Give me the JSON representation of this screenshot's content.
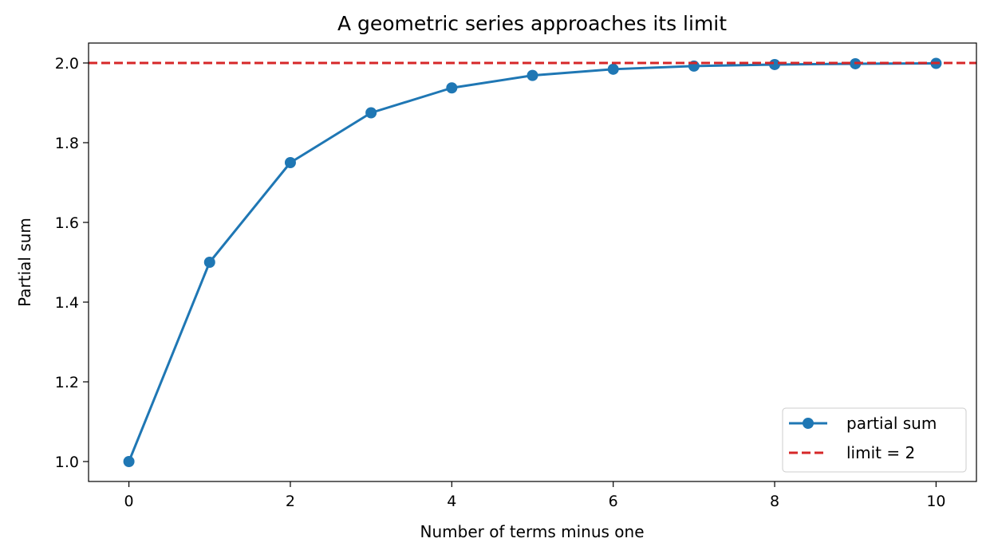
{
  "chart_data": {
    "type": "line",
    "title": "A geometric series approaches its limit",
    "xlabel": "Number of terms minus one",
    "ylabel": "Partial sum",
    "xlim": [
      -0.5,
      10.5
    ],
    "ylim": [
      0.95,
      2.05
    ],
    "x_ticks": [
      0,
      2,
      4,
      6,
      8,
      10
    ],
    "x_tick_labels": [
      "0",
      "2",
      "4",
      "6",
      "8",
      "10"
    ],
    "y_ticks": [
      1.0,
      1.2,
      1.4,
      1.6,
      1.8,
      2.0
    ],
    "y_tick_labels": [
      "1.0",
      "1.2",
      "1.4",
      "1.6",
      "1.8",
      "2.0"
    ],
    "grid": false,
    "legend_position": "lower-right",
    "series": [
      {
        "name": "partial sum",
        "color": "#1f77b4",
        "style": "solid line with circle markers",
        "x": [
          0,
          1,
          2,
          3,
          4,
          5,
          6,
          7,
          8,
          9,
          10
        ],
        "y": [
          1.0,
          1.5,
          1.75,
          1.875,
          1.9375,
          1.96875,
          1.984375,
          1.9921875,
          1.99609375,
          1.998046875,
          1.9990234375
        ]
      }
    ],
    "reference_lines": [
      {
        "name": "limit = 2",
        "orientation": "horizontal",
        "y": 2.0,
        "color": "#d62728",
        "style": "dashed"
      }
    ]
  }
}
